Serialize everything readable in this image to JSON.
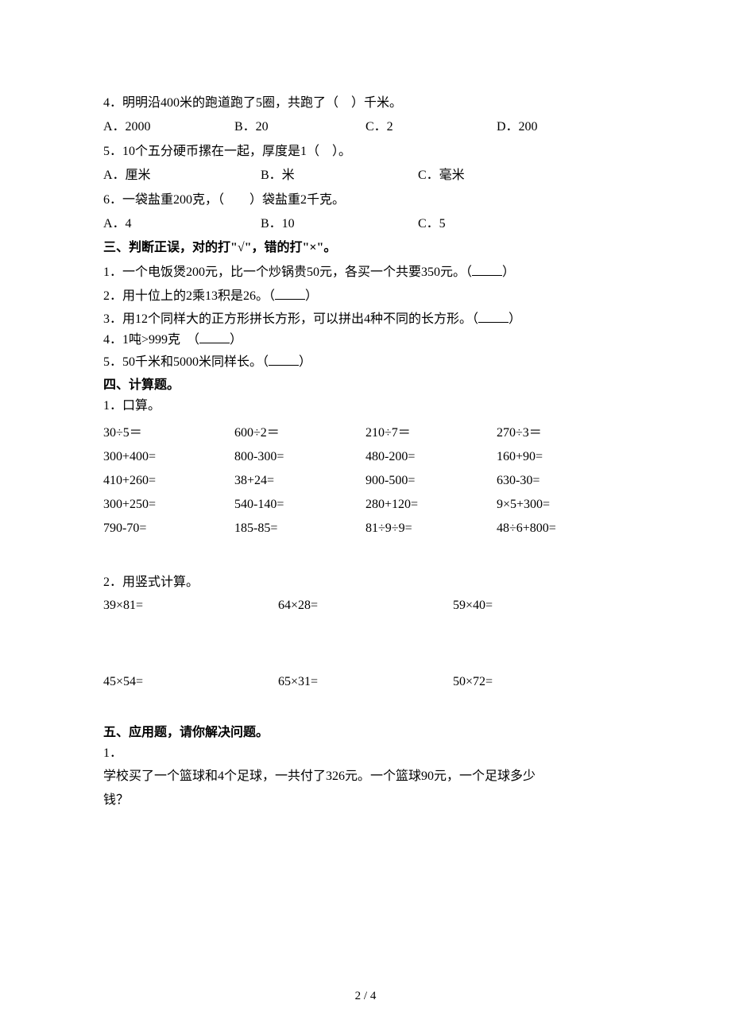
{
  "q4": {
    "text": "4．明明沿400米的跑道跑了5圈，共跑了（　）千米。",
    "opts": {
      "a": "A．2000",
      "b": "B．20",
      "c": "C．2",
      "d": "D．200"
    }
  },
  "q5": {
    "text": "5．10个五分硬币摞在一起，厚度是1（　）。",
    "opts": {
      "a": "A．厘米",
      "b": "B．米",
      "c": "C．毫米"
    }
  },
  "q6": {
    "text": "6．一袋盐重200克，（　　）袋盐重2千克。",
    "opts": {
      "a": "A．4",
      "b": "B．10",
      "c": "C．5"
    }
  },
  "sec3": {
    "title": "三、判断正误，对的打\"√\"，错的打\"×\"。",
    "q1a": "1．一个电饭煲200元，比一个炒锅贵50元，各买一个共要350元。（",
    "q1b": "）",
    "q2a": "2．用十位上的2乘13积是26。（",
    "q2b": "）",
    "q3a": "3．用12个同样大的正方形拼长方形，可以拼出4种不同的长方形。（",
    "q3b": "）",
    "q4a": "4．1吨>999克　（",
    "q4b": "）",
    "q5a": "5．50千米和5000米同样长。（",
    "q5b": "）"
  },
  "sec4": {
    "title": "四、计算题。",
    "p1": "1．口算。",
    "grid": [
      [
        "30÷5＝",
        "600÷2＝",
        "210÷7＝",
        "270÷3＝"
      ],
      [
        "300+400=",
        "800-300=",
        "480-200=",
        "160+90="
      ],
      [
        "410+260=",
        "38+24=",
        "900-500=",
        "630-30="
      ],
      [
        "300+250=",
        "540-140=",
        "280+120=",
        "9×5+300="
      ],
      [
        "790-70=",
        "185-85=",
        "81÷9÷9=",
        "48÷6+800="
      ]
    ],
    "p2": "2．用竖式计算。",
    "vgrid": [
      [
        "39×81=",
        "64×28=",
        "59×40="
      ],
      [
        "45×54=",
        "65×31=",
        "50×72="
      ]
    ]
  },
  "sec5": {
    "title": "五、应用题，请你解决问题。",
    "q1n": "1．",
    "q1a": "学校买了一个篮球和4个足球，一共付了326元。一个篮球90元，一个足球多少",
    "q1b": "钱？"
  },
  "pagenum": "2 / 4"
}
